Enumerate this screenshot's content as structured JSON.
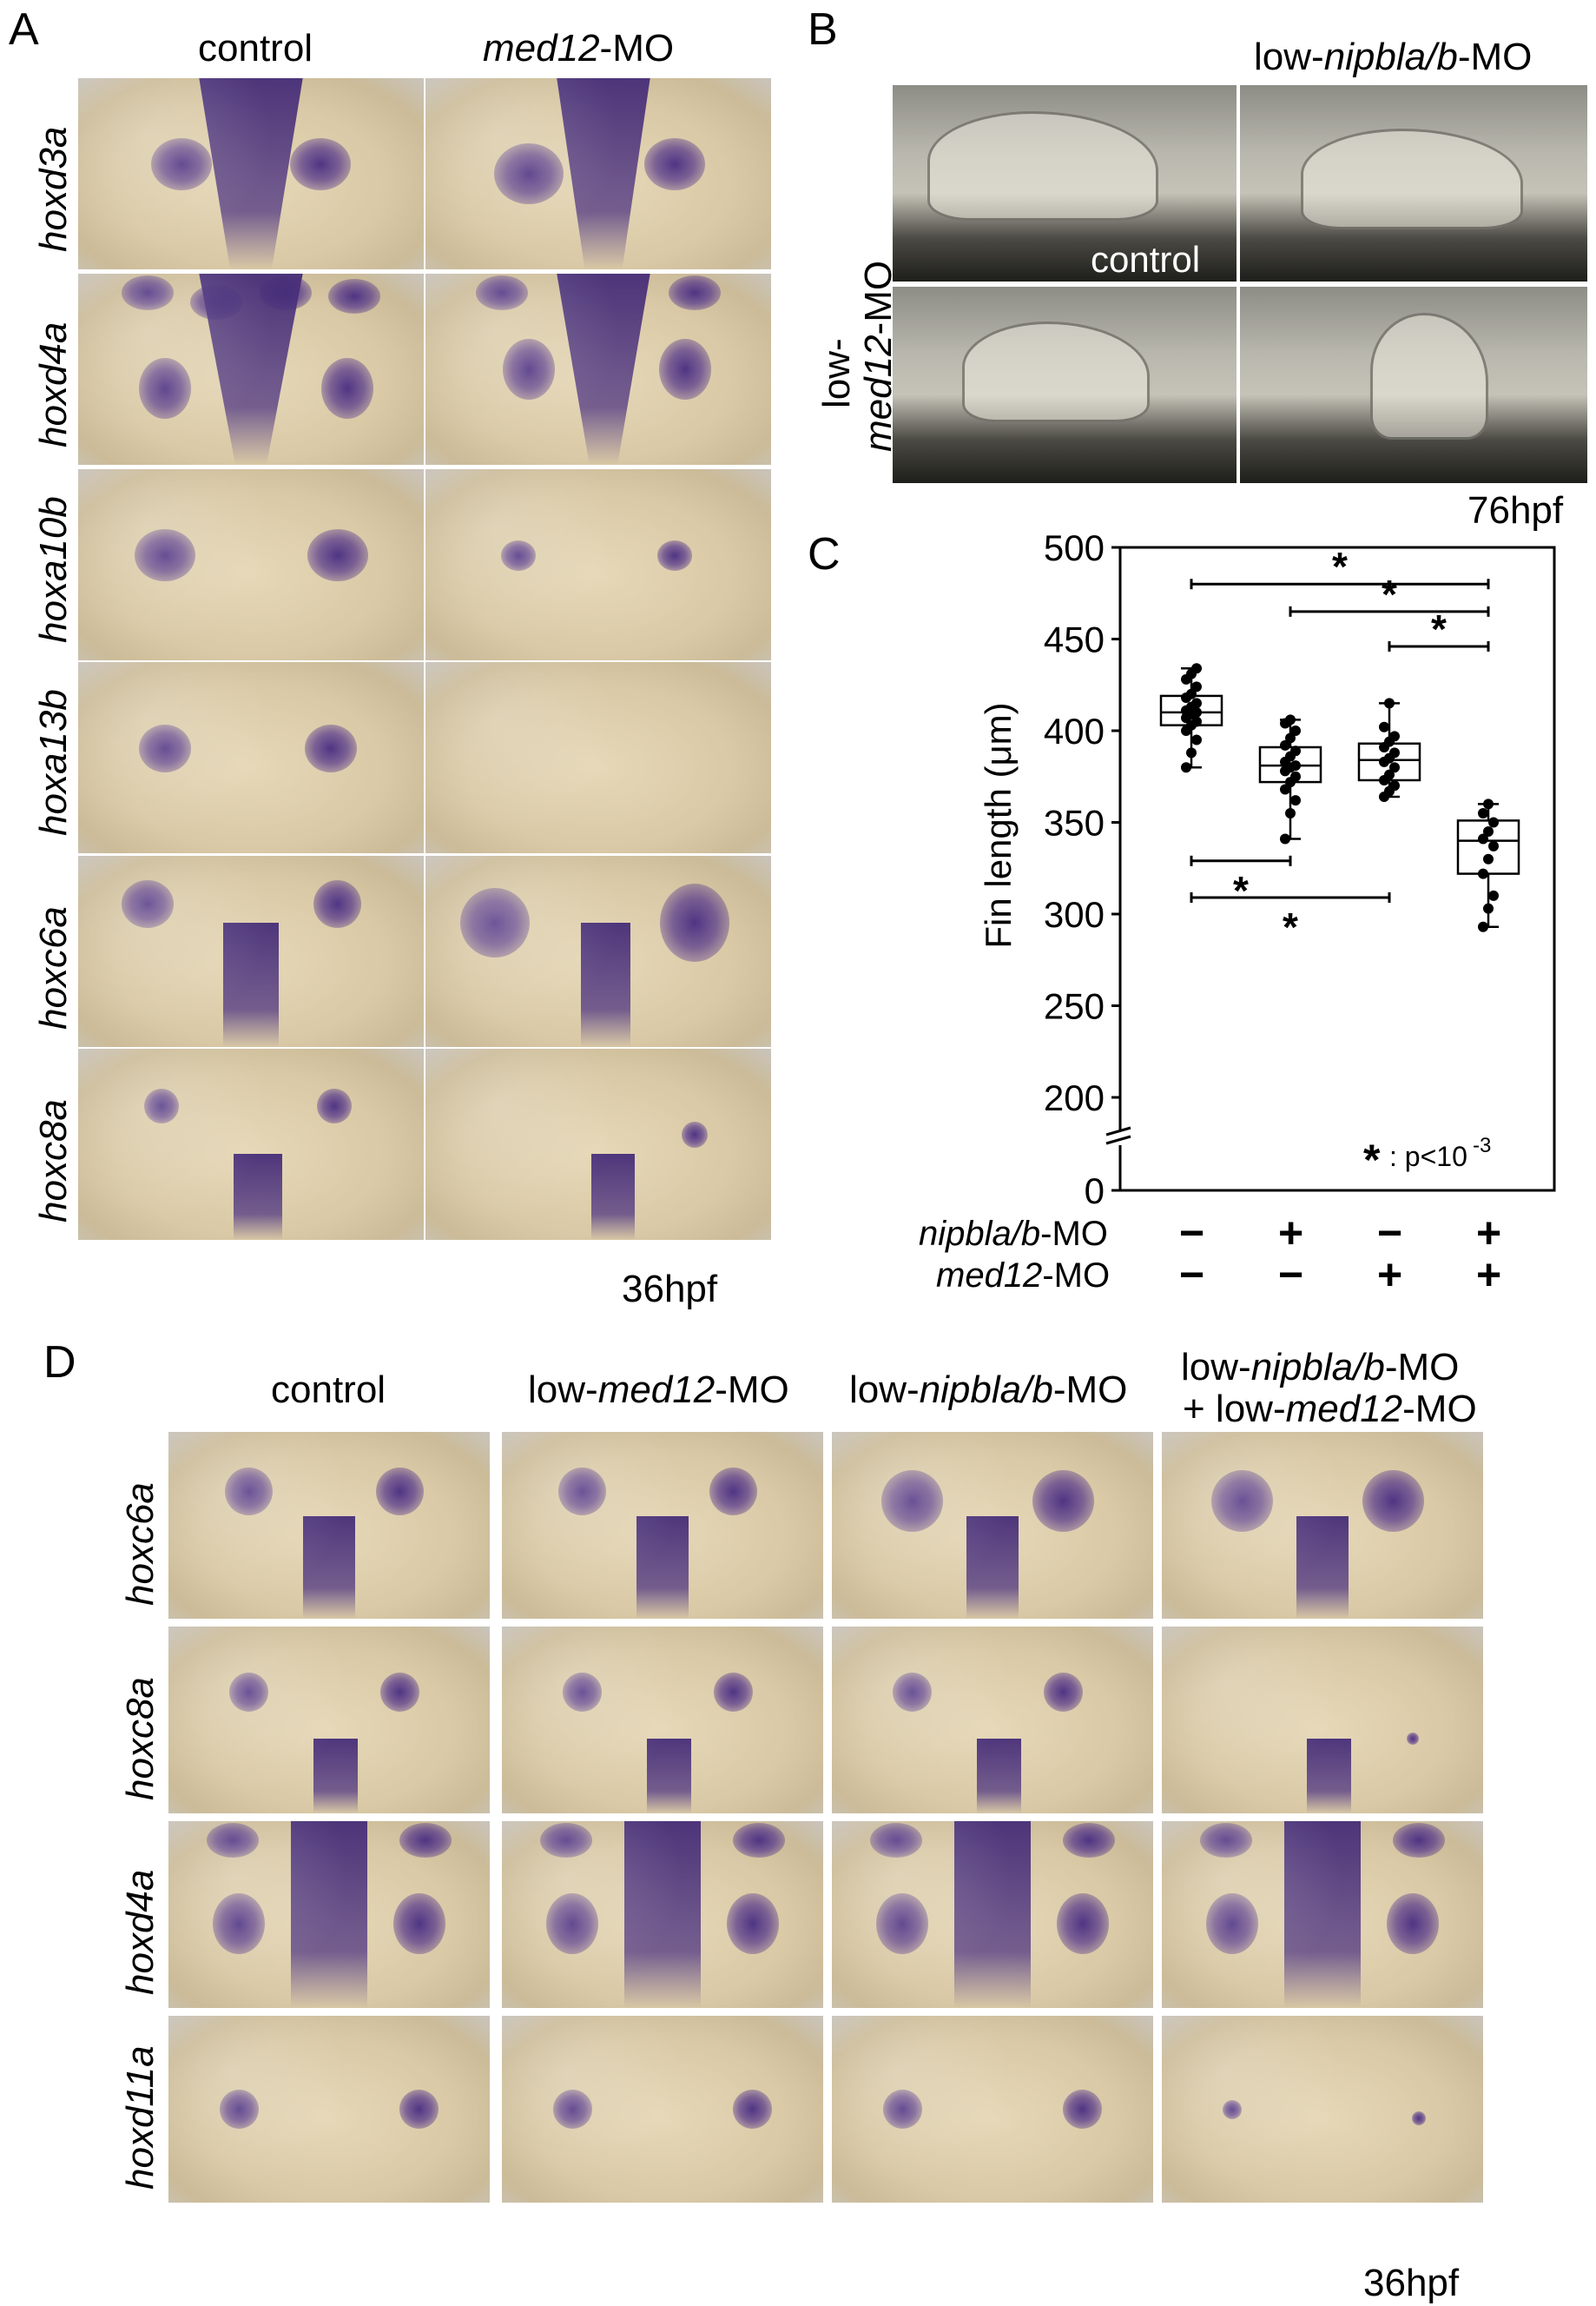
{
  "panelA": {
    "letter": "A",
    "col_headers": [
      "control",
      "med12-MO"
    ],
    "col_header_parts": [
      {
        "italic": "",
        "plain": "control"
      },
      {
        "italic": "med12",
        "plain": "-MO"
      }
    ],
    "rows": [
      "hoxd3a",
      "hoxd4a",
      "hoxa10b",
      "hoxa13b",
      "hoxc6a",
      "hoxc8a"
    ],
    "stage": "36hpf"
  },
  "panelB": {
    "letter": "B",
    "top_right_label": {
      "pre": "low-",
      "italic": "nipbla/b",
      "post": "-MO"
    },
    "inset_label": "control",
    "side_label": {
      "line1": "low-",
      "italic": "med12",
      "post": "-MO"
    },
    "stage": "76hpf"
  },
  "panelC": {
    "letter": "C",
    "significance_note": {
      "star": "*",
      "text": ": p<10",
      "exp": "-3"
    },
    "row_labels": [
      {
        "italic": "nipbla/b",
        "plain": "-MO",
        "signs": [
          "−",
          "+",
          "−",
          "+"
        ]
      },
      {
        "italic": "med12",
        "plain": "-MO",
        "signs": [
          "−",
          "−",
          "+",
          "+"
        ]
      }
    ]
  },
  "chart_data": {
    "type": "box",
    "ylabel": "Fin length (μm)",
    "yticks": [
      0,
      200,
      250,
      300,
      350,
      400,
      450,
      500
    ],
    "ylim": [
      180,
      500
    ],
    "axis_break": true,
    "groups": [
      {
        "q1": 403,
        "median": 410,
        "q3": 419,
        "whisker_low": 380,
        "whisker_high": 434,
        "points": [
          380,
          388,
          395,
          400,
          403,
          405,
          407,
          409,
          410,
          411,
          413,
          415,
          418,
          420,
          424,
          428,
          431,
          434
        ]
      },
      {
        "q1": 372,
        "median": 381,
        "q3": 391,
        "whisker_low": 341,
        "whisker_high": 406,
        "points": [
          341,
          355,
          362,
          368,
          372,
          375,
          378,
          380,
          381,
          383,
          386,
          389,
          392,
          396,
          400,
          404,
          406
        ]
      },
      {
        "q1": 373,
        "median": 384,
        "q3": 393,
        "whisker_low": 364,
        "whisker_high": 415,
        "points": [
          364,
          367,
          370,
          373,
          376,
          380,
          383,
          385,
          388,
          391,
          394,
          397,
          402,
          415
        ]
      },
      {
        "q1": 322,
        "median": 340,
        "q3": 351,
        "whisker_low": 293,
        "whisker_high": 360,
        "points": [
          293,
          303,
          310,
          322,
          330,
          337,
          341,
          345,
          350,
          355,
          360
        ]
      }
    ],
    "comparisons": [
      {
        "from": 0,
        "to": 3,
        "y": 480,
        "label": "*"
      },
      {
        "from": 1,
        "to": 3,
        "y": 465,
        "label": "*"
      },
      {
        "from": 2,
        "to": 3,
        "y": 446,
        "label": "*"
      },
      {
        "from": 0,
        "to": 1,
        "y": 329,
        "label": "*",
        "below": true
      },
      {
        "from": 0,
        "to": 2,
        "y": 309,
        "label": "*",
        "below": true
      }
    ]
  },
  "panelD": {
    "letter": "D",
    "col_headers": [
      [
        {
          "italic": "",
          "plain": "control"
        }
      ],
      [
        {
          "italic": "",
          "plain": "low-"
        },
        {
          "italic": "med12",
          "plain": ""
        },
        {
          "italic": "",
          "plain": "-MO"
        }
      ],
      [
        {
          "italic": "",
          "plain": "low-"
        },
        {
          "italic": "nipbla/b",
          "plain": ""
        },
        {
          "italic": "",
          "plain": "-MO"
        }
      ]
    ],
    "col_header_texts": [
      "control",
      "low-med12-MO",
      "low-nipbla/b-MO",
      "low-nipbla/b-MO\n+ low-med12-MO"
    ],
    "col4_line1": {
      "pre": "low-",
      "italic": "nipbla/b",
      "post": "-MO"
    },
    "col4_line2": {
      "pre": "+ low-",
      "italic": "med12",
      "post": "-MO"
    },
    "rows": [
      "hoxc6a",
      "hoxc8a",
      "hoxd4a",
      "hoxd11a"
    ],
    "stage": "36hpf"
  }
}
